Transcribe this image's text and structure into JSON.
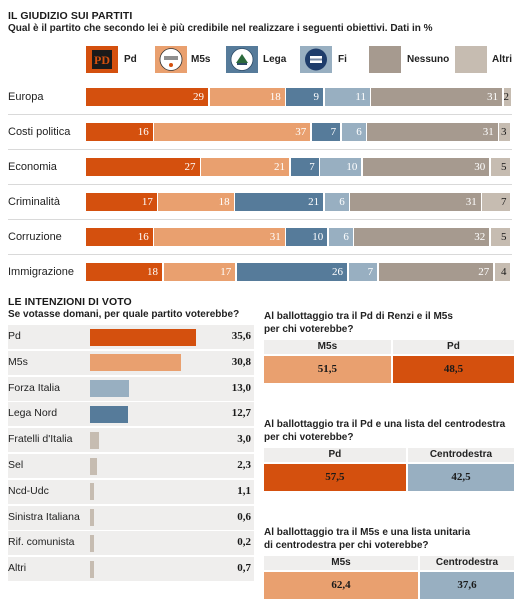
{
  "section1": {
    "title": "IL GIUDIZIO SUI PARTITI",
    "subtitle": "Qual è il partito che secondo lei è più credibile nel realizzare i seguenti obiettivi. Dati in %"
  },
  "colors": {
    "Pd": "#d4500e",
    "M5s": "#e9a06f",
    "Lega": "#567b9a",
    "Fi": "#98afc1",
    "Nessuno": "#a69a8f",
    "Altri": "#c6bcb1"
  },
  "legend": [
    {
      "name": "Pd",
      "icon": "pd-logo-icon"
    },
    {
      "name": "M5s",
      "icon": "m5s-logo-icon"
    },
    {
      "name": "Lega",
      "icon": "lega-logo-icon"
    },
    {
      "name": "Fi",
      "icon": "fi-logo-icon"
    },
    {
      "name": "Nessuno",
      "icon": ""
    },
    {
      "name": "Altri",
      "icon": ""
    }
  ],
  "chart_data": [
    {
      "type": "bar",
      "stacked": true,
      "orientation": "horizontal",
      "title": "IL GIUDIZIO SUI PARTITI",
      "subtitle": "Qual è il partito che secondo lei è più credibile nel realizzare i seguenti obiettivi. Dati in %",
      "categories": [
        "Europa",
        "Costi politica",
        "Economia",
        "Criminalità",
        "Corruzione",
        "Immigrazione"
      ],
      "series": [
        {
          "name": "Pd",
          "values": [
            29,
            16,
            27,
            17,
            16,
            18
          ]
        },
        {
          "name": "M5s",
          "values": [
            18,
            37,
            21,
            18,
            31,
            17
          ]
        },
        {
          "name": "Lega",
          "values": [
            9,
            7,
            7,
            21,
            10,
            26
          ]
        },
        {
          "name": "Fi",
          "values": [
            11,
            6,
            10,
            6,
            6,
            7
          ]
        },
        {
          "name": "Nessuno",
          "values": [
            31,
            31,
            30,
            31,
            32,
            27
          ]
        },
        {
          "name": "Altri",
          "values": [
            2,
            3,
            5,
            7,
            5,
            4
          ]
        }
      ],
      "legend": "top"
    },
    {
      "type": "bar",
      "orientation": "horizontal",
      "title": "LE INTENZIONI DI VOTO",
      "subtitle": "Se votasse domani, per quale partito voterebbe?",
      "categories": [
        "Pd",
        "M5s",
        "Forza Italia",
        "Lega Nord",
        "Fratelli d'Italia",
        "Sel",
        "Ncd-Udc",
        "Sinistra Italiana",
        "Rif. comunista",
        "Altri"
      ],
      "values": [
        35.6,
        30.8,
        13.0,
        12.7,
        3.0,
        2.3,
        1.1,
        0.6,
        0.2,
        0.7
      ],
      "labels": [
        "35,6",
        "30,8",
        "13,0",
        "12,7",
        "3,0",
        "2,3",
        "1,1",
        "0,6",
        "0,2",
        "0,7"
      ],
      "colors": [
        "#d4500e",
        "#e9a06f",
        "#98afc1",
        "#567b9a",
        "#c6bcb1",
        "#c6bcb1",
        "#c6bcb1",
        "#c6bcb1",
        "#c6bcb1",
        "#c6bcb1"
      ]
    },
    {
      "type": "bar",
      "stacked": true,
      "title": "Al ballottaggio tra il Pd di Renzi e il M5s per chi voterebbe?",
      "categories": [
        "M5s",
        "Pd"
      ],
      "values": [
        51.5,
        48.5
      ],
      "labels": [
        "51,5",
        "48,5"
      ]
    },
    {
      "type": "bar",
      "stacked": true,
      "title": "Al ballottaggio tra il Pd e una lista del centrodestra per chi voterebbe?",
      "categories": [
        "Pd",
        "Centrodestra"
      ],
      "values": [
        57.5,
        42.5
      ],
      "labels": [
        "57,5",
        "42,5"
      ]
    },
    {
      "type": "bar",
      "stacked": true,
      "title": "Al ballottaggio tra il M5s e una lista unitaria di centrodestra per chi voterebbe?",
      "categories": [
        "M5s",
        "Centrodestra"
      ],
      "values": [
        62.4,
        37.6
      ],
      "labels": [
        "62,4",
        "37,6"
      ]
    }
  ],
  "section2": {
    "title": "LE INTENZIONI DI VOTO",
    "subtitle": "Se votasse domani, per quale partito voterebbe?"
  },
  "ballot": [
    {
      "title_line1": "Al ballottaggio tra il Pd di Renzi e il M5s",
      "title_line2": "per chi voterebbe?",
      "left_name": "M5s",
      "right_name": "Pd",
      "left_label": "51,5",
      "right_label": "48,5",
      "left_value": 51.5,
      "left_color": "#e9a06f",
      "right_color": "#d4500e"
    },
    {
      "title_line1": "Al ballottaggio tra il Pd e una lista del centrodestra",
      "title_line2": "per chi voterebbe?",
      "left_name": "Pd",
      "right_name": "Centrodestra",
      "left_label": "57,5",
      "right_label": "42,5",
      "left_value": 57.5,
      "left_color": "#d4500e",
      "right_color": "#98afc1"
    },
    {
      "title_line1": "Al ballottaggio tra il M5s e una lista unitaria",
      "title_line2": "di centrodestra per chi voterebbe?",
      "left_name": "M5s",
      "right_name": "Centrodestra",
      "left_label": "62,4",
      "right_label": "37,6",
      "left_value": 62.4,
      "left_color": "#e9a06f",
      "right_color": "#98afc1"
    }
  ]
}
